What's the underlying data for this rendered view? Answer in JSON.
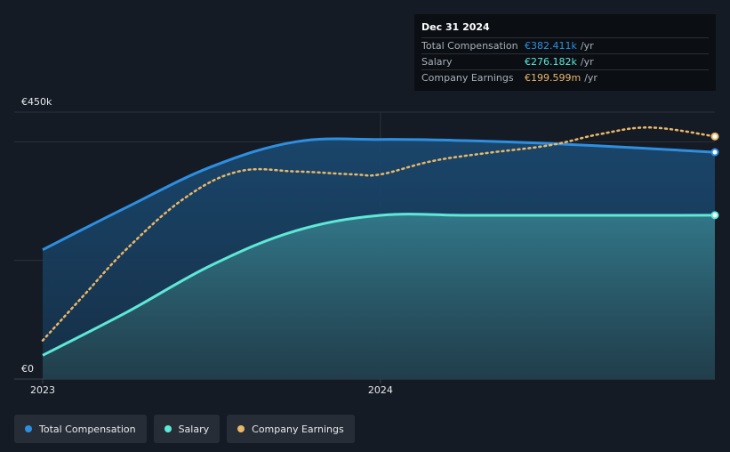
{
  "chart_data": {
    "type": "area",
    "title": "",
    "xlabel": "",
    "ylabel": "",
    "ylim": [
      0,
      450
    ],
    "xlim": [
      2023.0,
      2024.99
    ],
    "y_tick_labels": [
      {
        "value": 450,
        "label": "€450k"
      },
      {
        "value": 0,
        "label": "€0"
      }
    ],
    "x_tick_labels": [
      {
        "value": 2023.0,
        "label": "2023"
      },
      {
        "value": 2024.0,
        "label": "2024"
      }
    ],
    "series": [
      {
        "name": "Total Compensation",
        "color": "#2e8fe0",
        "style": "solid-area",
        "points": [
          [
            2023.0,
            218
          ],
          [
            2023.25,
            290
          ],
          [
            2023.5,
            358
          ],
          [
            2023.75,
            400
          ],
          [
            2024.0,
            404
          ],
          [
            2024.25,
            402
          ],
          [
            2024.5,
            397
          ],
          [
            2024.75,
            390
          ],
          [
            2024.99,
            382.411
          ]
        ]
      },
      {
        "name": "Salary",
        "color": "#5ee8d8",
        "style": "solid-area",
        "points": [
          [
            2023.0,
            40
          ],
          [
            2023.25,
            113
          ],
          [
            2023.5,
            192
          ],
          [
            2023.75,
            250
          ],
          [
            2024.0,
            276
          ],
          [
            2024.25,
            276
          ],
          [
            2024.5,
            276
          ],
          [
            2024.75,
            276
          ],
          [
            2024.99,
            276.182
          ]
        ]
      },
      {
        "name": "Company Earnings",
        "color": "#e8b76a",
        "style": "dotted",
        "points": [
          [
            2023.0,
            65
          ],
          [
            2023.12,
            140
          ],
          [
            2023.25,
            220
          ],
          [
            2023.42,
            305
          ],
          [
            2023.58,
            350
          ],
          [
            2023.75,
            350
          ],
          [
            2023.92,
            345
          ],
          [
            2024.0,
            345
          ],
          [
            2024.15,
            367
          ],
          [
            2024.3,
            380
          ],
          [
            2024.5,
            394
          ],
          [
            2024.65,
            413
          ],
          [
            2024.8,
            424
          ],
          [
            2024.99,
            409
          ]
        ]
      }
    ],
    "legend_position": "bottom-left"
  },
  "tooltip": {
    "date": "Dec 31 2024",
    "rows": [
      {
        "label": "Total Compensation",
        "value": "€382.411k",
        "unit": "/yr",
        "color": "#2e8fe0"
      },
      {
        "label": "Salary",
        "value": "€276.182k",
        "unit": "/yr",
        "color": "#5ee8d8"
      },
      {
        "label": "Company Earnings",
        "value": "€199.599m",
        "unit": "/yr",
        "color": "#e8b76a"
      }
    ]
  },
  "legend": [
    {
      "label": "Total Compensation",
      "color": "#2e8fe0"
    },
    {
      "label": "Salary",
      "color": "#5ee8d8"
    },
    {
      "label": "Company Earnings",
      "color": "#e8b76a"
    }
  ]
}
